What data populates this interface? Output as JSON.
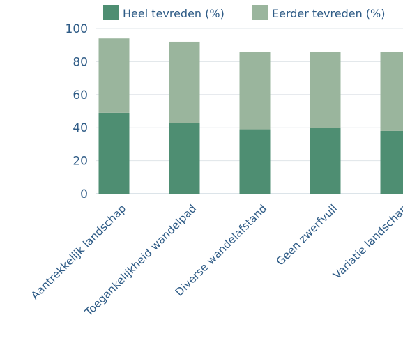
{
  "chart_data": {
    "type": "bar",
    "stacked": true,
    "categories": [
      "Aantrekkelijk landschap",
      "Toegankelijkheid wandelpad",
      "Diverse wandelafstand",
      "Geen zwerfvuil",
      "Variatie landschap"
    ],
    "series": [
      {
        "name": "Heel tevreden (%)",
        "values": [
          49,
          43,
          39,
          40,
          38
        ],
        "color": "#4e8e72"
      },
      {
        "name": "Eerder tevreden (%)",
        "values": [
          45,
          49,
          47,
          46,
          48
        ],
        "color": "#9ab59d"
      }
    ],
    "ylim": [
      0,
      100
    ],
    "yticks": [
      0,
      20,
      40,
      60,
      80,
      100
    ],
    "grid": true,
    "legend_position": "top"
  }
}
